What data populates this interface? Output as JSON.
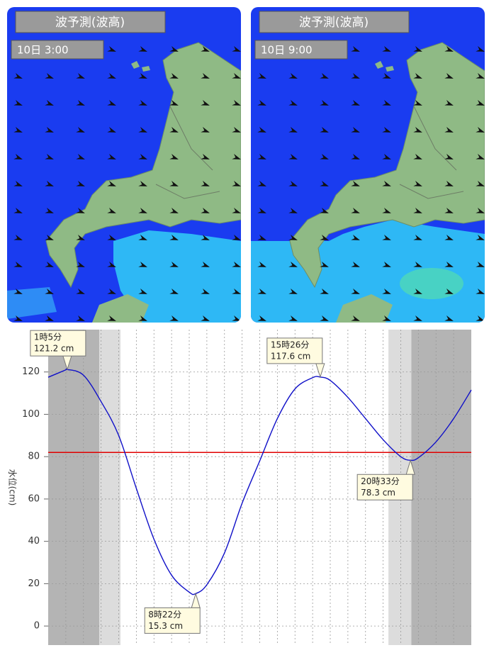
{
  "panels": [
    {
      "title": "波予測(波高)",
      "time": "10日 3:00"
    },
    {
      "title": "波予測(波高)",
      "time": "10日 9:00"
    }
  ],
  "chart_data": {
    "type": "line",
    "y_label": "水位(cm)",
    "xlim": [
      0,
      24
    ],
    "ylim": [
      -9,
      140
    ],
    "yticks": [
      0,
      20,
      40,
      60,
      80,
      100,
      120
    ],
    "xgrid": [
      1,
      2,
      3,
      4,
      5,
      6,
      7,
      8,
      9,
      10,
      11,
      12,
      13,
      14,
      15,
      16,
      17,
      18,
      19,
      20,
      21,
      22,
      23
    ],
    "bands": [
      {
        "start": 0,
        "end": 2.9,
        "color": "#b4b4b4"
      },
      {
        "start": 2.9,
        "end": 4.1,
        "color": "#dcdcdc"
      },
      {
        "start": 19.3,
        "end": 20.6,
        "color": "#dcdcdc"
      },
      {
        "start": 20.6,
        "end": 24,
        "color": "#b4b4b4"
      }
    ],
    "reference_line": {
      "value": 82,
      "color": "#e00000"
    },
    "series": [
      {
        "color": "#1010c8",
        "x": [
          0,
          1,
          1.08,
          2,
          3,
          4,
          5,
          6,
          7,
          8,
          8.37,
          9,
          10,
          11,
          12,
          13,
          14,
          15,
          15.43,
          16,
          17,
          18,
          19,
          20,
          20.55,
          21,
          22,
          23,
          24
        ],
        "values": [
          117.5,
          121,
          121.2,
          118.5,
          106,
          90,
          65,
          41,
          24,
          16,
          15.3,
          19.5,
          34.5,
          58,
          78,
          98,
          112,
          117.3,
          117.6,
          116,
          108,
          98,
          88,
          80,
          78.3,
          79.5,
          87,
          98,
          111.5
        ]
      }
    ],
    "annotations": [
      {
        "time": "1時5分",
        "label": "121.2 cm",
        "x": 1.08,
        "y": 121.2
      },
      {
        "time": "8時22分",
        "label": "15.3 cm",
        "x": 8.37,
        "y": 15.3
      },
      {
        "time": "15時26分",
        "label": "117.6 cm",
        "x": 15.43,
        "y": 117.6
      },
      {
        "time": "20時33分",
        "label": "78.3 cm",
        "x": 20.55,
        "y": 78.3
      }
    ]
  }
}
